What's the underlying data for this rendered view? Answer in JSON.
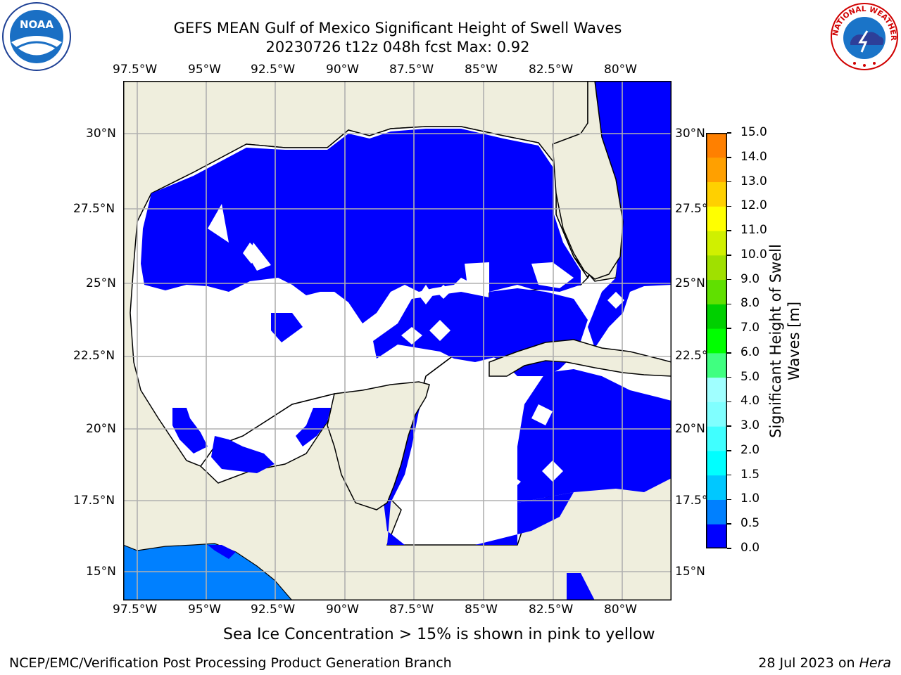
{
  "title": {
    "line1": "GEFS MEAN Gulf of Mexico Significant Height of Swell Waves",
    "line2": "20230726 t12z 048h fcst   Max: 0.92"
  },
  "logos": {
    "left": {
      "name": "noaa-logo",
      "text": "NOAA"
    },
    "right": {
      "name": "nws-logo",
      "text": "NATIONAL WEATHER SERVICE"
    }
  },
  "map": {
    "lon_labels": [
      "97.5°W",
      "95°W",
      "92.5°W",
      "90°W",
      "87.5°W",
      "85°W",
      "82.5°W",
      "80°W"
    ],
    "lat_labels": [
      "30°N",
      "27.5°N",
      "25°N",
      "22.5°N",
      "20°N",
      "17.5°N",
      "15°N"
    ],
    "colors": {
      "land": "#efeedd",
      "low_swell": "#0000ff",
      "calm": "#ffffff",
      "pacific_swell": "#0080ff",
      "grid": "#b0b0b0"
    }
  },
  "colorbar": {
    "label": "Significant Height of Swell Waves [m]",
    "ticks": [
      "15.0",
      "14.0",
      "13.0",
      "12.0",
      "11.0",
      "10.0",
      "9.0",
      "8.0",
      "7.0",
      "6.0",
      "5.0",
      "4.0",
      "3.0",
      "2.0",
      "1.5",
      "1.0",
      "0.5",
      "0.0"
    ],
    "colors_bottom_to_top": [
      "#0000ff",
      "#0080ff",
      "#00c8ff",
      "#00ffff",
      "#40ffff",
      "#80ffff",
      "#a0ffff",
      "#40ff80",
      "#00ff00",
      "#00d000",
      "#60e000",
      "#a0e000",
      "#d0f000",
      "#ffff00",
      "#ffd000",
      "#ffa000",
      "#ff8000",
      "#ff4000",
      "#ff0000",
      "#ff0000"
    ]
  },
  "note": "Sea Ice Concentration > 15% is shown in pink to yellow",
  "footer": {
    "left": "NCEP/EMC/Verification Post Processing Product Generation Branch",
    "date": "28 Jul 2023 on ",
    "host": "Hera"
  }
}
